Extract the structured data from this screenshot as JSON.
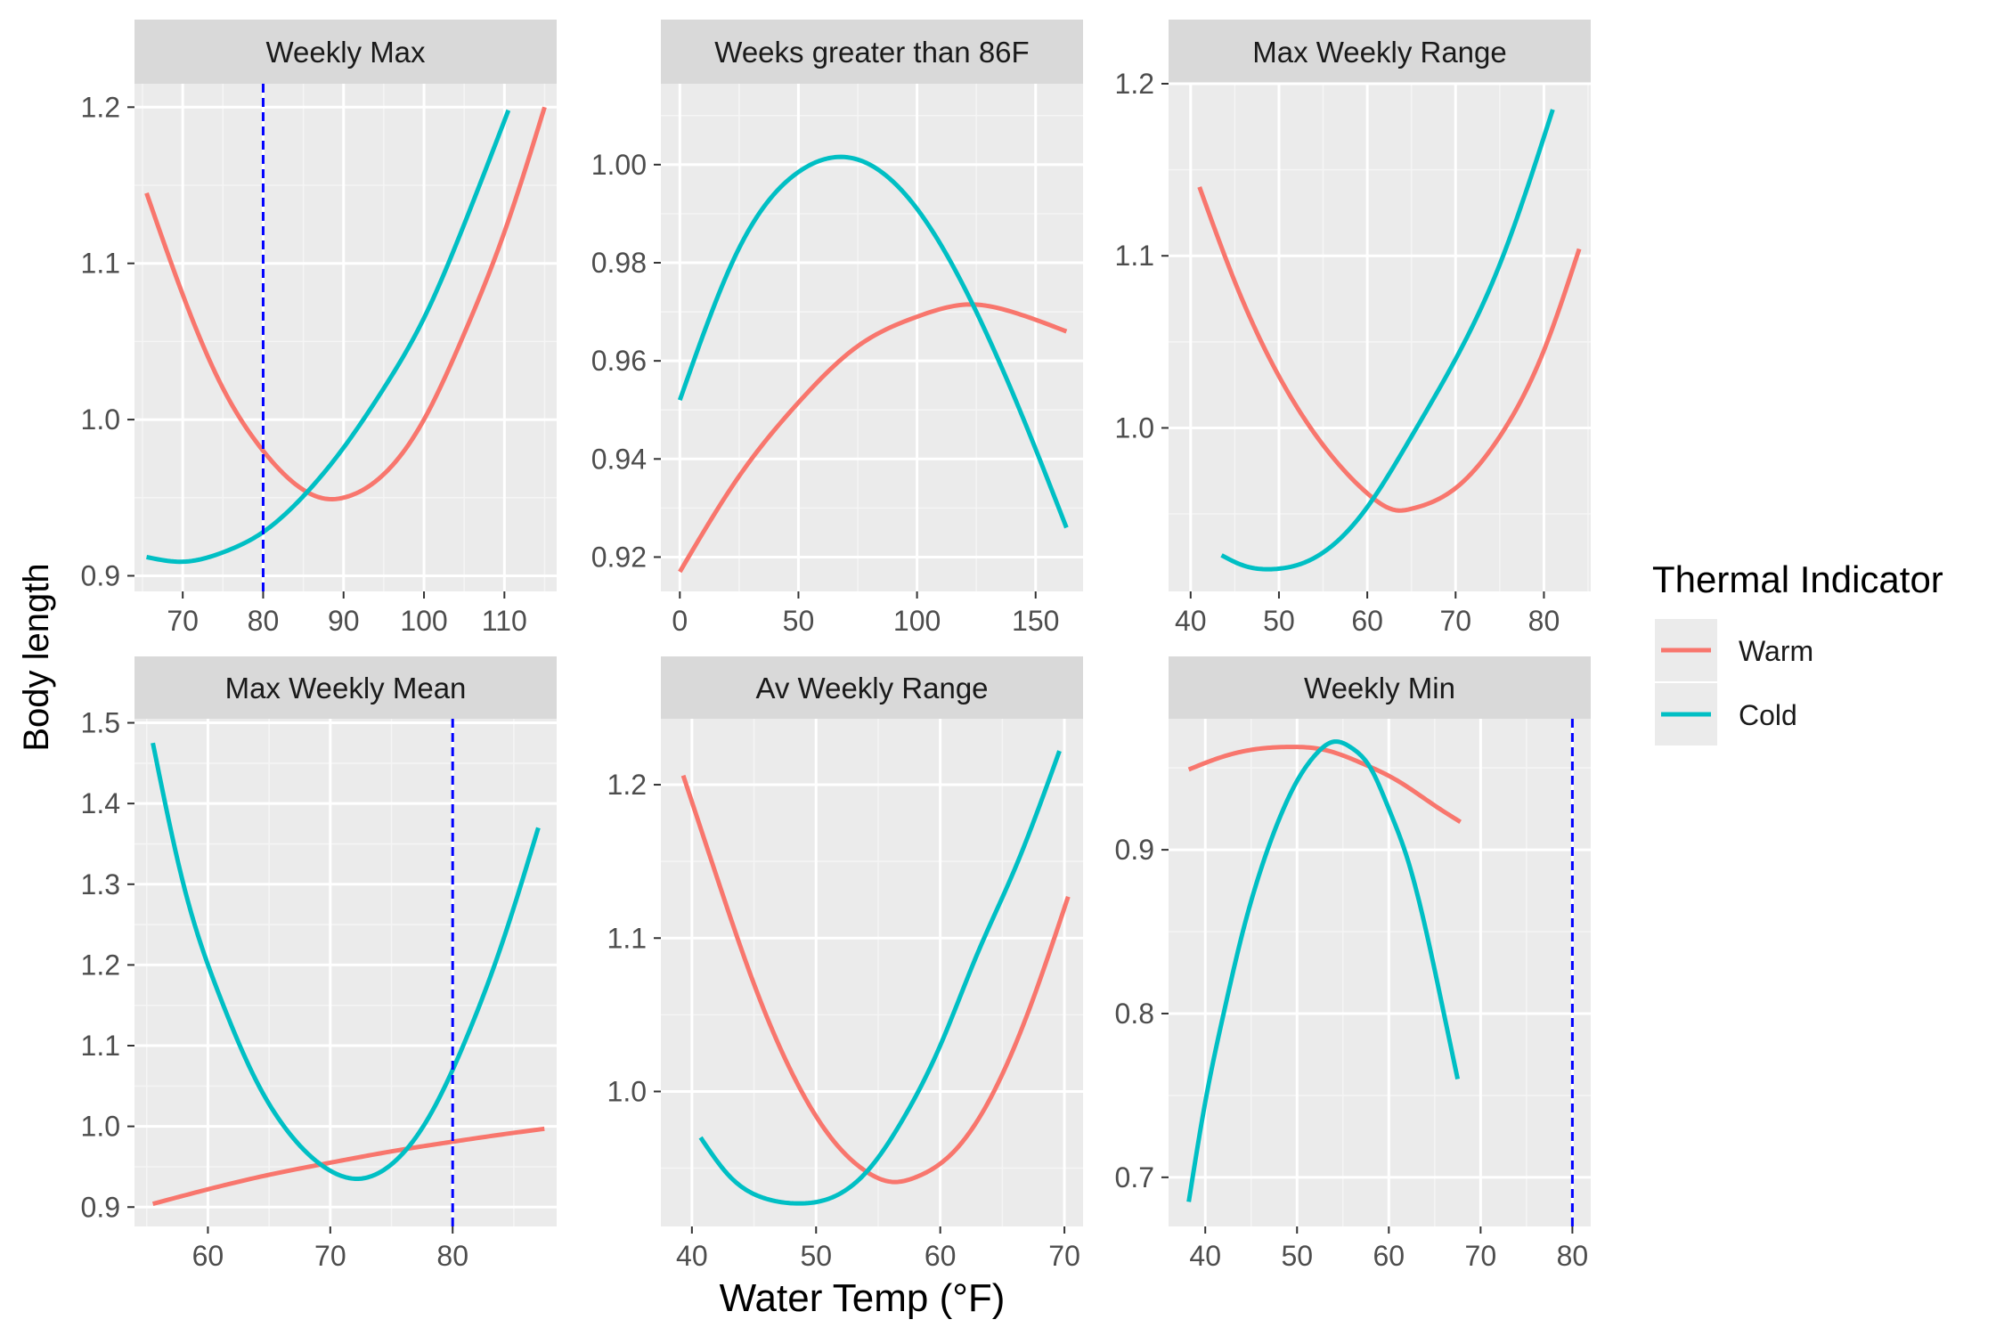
{
  "figure": {
    "xlabel": "Water Temp (°F)",
    "ylabel": "Body length",
    "legend": {
      "title": "Thermal Indicator",
      "position": "right",
      "items": [
        {
          "label": "Warm",
          "color": "#F8766D"
        },
        {
          "label": "Cold",
          "color": "#00BFC4"
        }
      ]
    },
    "ref_line_color": "#0000FF"
  },
  "chart_data": [
    {
      "type": "line",
      "title": "Weekly Max",
      "xlim": [
        64,
        116.5
      ],
      "ylim": [
        0.89,
        1.215
      ],
      "xticks": [
        70,
        80,
        90,
        100,
        110
      ],
      "yticks": [
        0.9,
        1.0,
        1.1,
        1.2
      ],
      "ytick_labels": [
        "0.9",
        "1.0",
        "1.1",
        "1.2"
      ],
      "vline": 80,
      "grid": true,
      "series": [
        {
          "name": "Warm",
          "x": [
            65.5,
            70,
            75,
            80,
            85,
            88.5,
            90,
            95,
            100,
            105,
            110,
            115
          ],
          "y": [
            1.145,
            1.08,
            1.02,
            0.98,
            0.955,
            0.949,
            0.95,
            0.965,
            1.0,
            1.055,
            1.12,
            1.2
          ]
        },
        {
          "name": "Cold",
          "x": [
            65.5,
            70,
            75,
            80,
            85,
            90,
            95,
            100,
            105,
            110.5
          ],
          "y": [
            0.912,
            0.909,
            0.915,
            0.928,
            0.951,
            0.982,
            1.02,
            1.065,
            1.125,
            1.198
          ]
        }
      ]
    },
    {
      "type": "line",
      "title": "Weeks greater than 86F",
      "xlim": [
        -8,
        170
      ],
      "ylim": [
        0.913,
        1.0165
      ],
      "xticks": [
        0,
        50,
        100,
        150
      ],
      "yticks": [
        0.92,
        0.94,
        0.96,
        0.98,
        1.0
      ],
      "ytick_labels": [
        "0.92",
        "0.94",
        "0.96",
        "0.98",
        "1.00"
      ],
      "vline": null,
      "grid": true,
      "series": [
        {
          "name": "Warm",
          "x": [
            0,
            25,
            50,
            75,
            100,
            122,
            140,
            163
          ],
          "y": [
            0.917,
            0.9365,
            0.9515,
            0.963,
            0.969,
            0.9715,
            0.97,
            0.966
          ]
        },
        {
          "name": "Cold",
          "x": [
            0,
            25,
            50,
            73,
            100,
            125,
            145,
            163
          ],
          "y": [
            0.952,
            0.983,
            0.9985,
            1.0013,
            0.991,
            0.97,
            0.948,
            0.926
          ]
        }
      ]
    },
    {
      "type": "line",
      "title": "Max Weekly Range",
      "xlim": [
        37.5,
        85.3
      ],
      "ylim": [
        0.905,
        1.2
      ],
      "xticks": [
        40,
        50,
        60,
        70,
        80
      ],
      "yticks": [
        1.0,
        1.1,
        1.2
      ],
      "ytick_labels": [
        "1.0",
        "1.1",
        "1.2"
      ],
      "vline": null,
      "grid": true,
      "series": [
        {
          "name": "Warm",
          "x": [
            41,
            45,
            50,
            55,
            60,
            63.5,
            65,
            70,
            75,
            80,
            84
          ],
          "y": [
            1.14,
            1.085,
            1.03,
            0.99,
            0.962,
            0.952,
            0.953,
            0.965,
            0.995,
            1.045,
            1.104
          ]
        },
        {
          "name": "Cold",
          "x": [
            43.5,
            46,
            49.5,
            53,
            57,
            60,
            65,
            70,
            75,
            81
          ],
          "y": [
            0.926,
            0.92,
            0.918,
            0.922,
            0.936,
            0.954,
            0.995,
            1.04,
            1.095,
            1.185
          ]
        }
      ]
    },
    {
      "type": "line",
      "title": "Max Weekly Mean",
      "xlim": [
        54,
        88.5
      ],
      "ylim": [
        0.876,
        1.505
      ],
      "xticks": [
        60,
        70,
        80
      ],
      "yticks": [
        0.9,
        1.0,
        1.1,
        1.2,
        1.3,
        1.4,
        1.5
      ],
      "ytick_labels": [
        "0.9",
        "1.0",
        "1.1",
        "1.2",
        "1.3",
        "1.4",
        "1.5"
      ],
      "vline": 80,
      "grid": true,
      "series": [
        {
          "name": "Warm",
          "x": [
            55.5,
            60,
            65,
            70,
            75,
            80,
            85,
            87.5
          ],
          "y": [
            0.904,
            0.922,
            0.94,
            0.955,
            0.969,
            0.981,
            0.992,
            0.997
          ]
        },
        {
          "name": "Cold",
          "x": [
            55.5,
            58,
            61,
            64,
            67,
            70,
            72.2,
            75,
            78,
            81,
            84,
            87
          ],
          "y": [
            1.475,
            1.3,
            1.16,
            1.055,
            0.985,
            0.945,
            0.935,
            0.953,
            1.01,
            1.105,
            1.225,
            1.37
          ]
        }
      ]
    },
    {
      "type": "line",
      "title": "Av Weekly Range",
      "xlim": [
        37.5,
        71.5
      ],
      "ylim": [
        0.912,
        1.243
      ],
      "xticks": [
        40,
        50,
        60,
        70
      ],
      "yticks": [
        1.0,
        1.1,
        1.2
      ],
      "ytick_labels": [
        "1.0",
        "1.1",
        "1.2"
      ],
      "vline": null,
      "grid": true,
      "series": [
        {
          "name": "Warm",
          "x": [
            39.3,
            42,
            45,
            48,
            51,
            54,
            56.2,
            58,
            61,
            64,
            67,
            70.3
          ],
          "y": [
            1.206,
            1.14,
            1.07,
            1.013,
            0.972,
            0.948,
            0.941,
            0.944,
            0.96,
            0.995,
            1.05,
            1.127
          ]
        },
        {
          "name": "Cold",
          "x": [
            40.7,
            43,
            46,
            48.5,
            51,
            54,
            57,
            60,
            63,
            66,
            69.6
          ],
          "y": [
            0.97,
            0.945,
            0.93,
            0.927,
            0.93,
            0.947,
            0.982,
            1.03,
            1.09,
            1.145,
            1.222
          ]
        }
      ]
    },
    {
      "type": "line",
      "title": "Weekly Min",
      "xlim": [
        36,
        82
      ],
      "ylim": [
        0.67,
        0.98
      ],
      "xticks": [
        40,
        50,
        60,
        70,
        80
      ],
      "yticks": [
        0.7,
        0.8,
        0.9
      ],
      "ytick_labels": [
        "0.7",
        "0.8",
        "0.9"
      ],
      "vline": 80,
      "grid": true,
      "series": [
        {
          "name": "Warm",
          "x": [
            38.2,
            42,
            45,
            49,
            53,
            57,
            61,
            65,
            67.8
          ],
          "y": [
            0.949,
            0.957,
            0.961,
            0.9628,
            0.961,
            0.953,
            0.942,
            0.927,
            0.917
          ]
        },
        {
          "name": "Cold",
          "x": [
            38.2,
            40,
            42,
            44,
            46,
            48,
            50,
            52,
            54,
            56,
            58,
            60,
            62,
            64,
            66,
            67.5
          ],
          "y": [
            0.685,
            0.746,
            0.8,
            0.848,
            0.887,
            0.918,
            0.942,
            0.958,
            0.966,
            0.962,
            0.95,
            0.925,
            0.895,
            0.852,
            0.8,
            0.76
          ]
        }
      ]
    }
  ]
}
